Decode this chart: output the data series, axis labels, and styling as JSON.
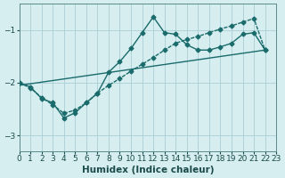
{
  "xlabel": "Humidex (Indice chaleur)",
  "ylabel": "",
  "bg_color": "#d6eef0",
  "grid_color": "#aacdd4",
  "line_color": "#1a6b6b",
  "xlim": [
    0,
    23
  ],
  "ylim": [
    -3.3,
    -0.5
  ],
  "yticks": [
    -3,
    -2,
    -1
  ],
  "xticks": [
    0,
    1,
    2,
    3,
    4,
    5,
    6,
    7,
    8,
    9,
    10,
    11,
    12,
    13,
    14,
    15,
    16,
    17,
    18,
    19,
    20,
    21,
    22,
    23
  ],
  "line1_x": [
    0,
    1,
    2,
    3,
    4,
    5,
    6,
    7,
    8,
    9,
    10,
    11,
    12,
    13,
    14,
    15,
    16,
    17,
    18,
    19,
    20,
    21,
    22
  ],
  "line1_y": [
    -2.0,
    -2.08,
    -2.3,
    -2.38,
    -2.67,
    -2.57,
    -2.38,
    -2.2,
    -1.8,
    -1.6,
    -1.35,
    -1.05,
    -0.75,
    -1.05,
    -1.08,
    -1.28,
    -1.38,
    -1.38,
    -1.32,
    -1.25,
    -1.08,
    -1.05,
    -1.38
  ],
  "line2_x": [
    0,
    1,
    2,
    3,
    4,
    5,
    6,
    7,
    8,
    9,
    10,
    11,
    12,
    13,
    14,
    15,
    16,
    17,
    18,
    19,
    20,
    21,
    22
  ],
  "line2_y": [
    -2.0,
    -2.1,
    -2.28,
    -2.42,
    -2.58,
    -2.52,
    -2.38,
    -2.2,
    -2.05,
    -1.92,
    -1.78,
    -1.65,
    -1.52,
    -1.38,
    -1.25,
    -1.18,
    -1.12,
    -1.05,
    -0.98,
    -0.92,
    -0.85,
    -0.78,
    -1.38
  ],
  "line3_x": [
    0,
    22
  ],
  "line3_y": [
    -2.05,
    -1.38
  ]
}
